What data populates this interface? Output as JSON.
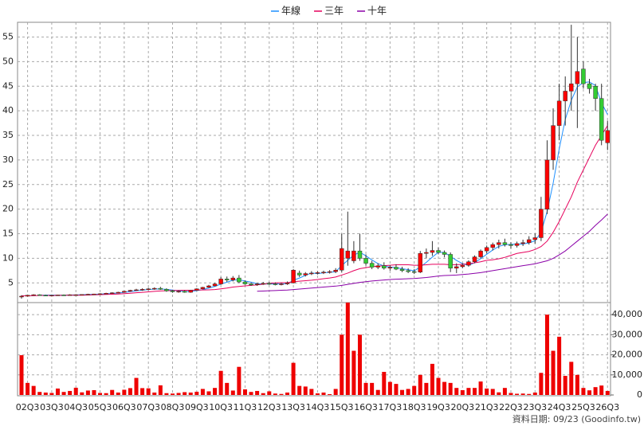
{
  "chart_data": {
    "type": "candlestick",
    "categories": [
      null,
      "02Q3",
      null,
      null,
      null,
      "03Q3",
      null,
      null,
      null,
      "04Q3",
      null,
      null,
      null,
      "05Q3",
      null,
      null,
      null,
      "06Q3",
      null,
      null,
      null,
      "07Q3",
      null,
      null,
      null,
      "08Q3",
      null,
      null,
      null,
      "09Q3",
      null,
      null,
      null,
      "10Q3",
      null,
      null,
      null,
      "11Q3",
      null,
      null,
      null,
      "12Q3",
      null,
      null,
      null,
      "13Q3",
      null,
      null,
      null,
      "14Q3",
      null,
      null,
      null,
      "15Q3",
      null,
      null,
      null,
      "16Q3",
      null,
      null,
      null,
      "17Q3",
      null,
      null,
      null,
      "18Q3",
      null,
      null,
      null,
      "19Q3",
      null,
      null,
      null,
      "20Q3",
      null,
      null,
      null,
      "21Q3",
      null,
      null,
      null,
      "22Q3",
      null,
      null,
      null,
      "23Q3",
      null,
      null,
      null,
      "24Q3",
      null,
      null,
      null,
      "25Q3",
      null,
      null,
      null,
      "26Q3"
    ],
    "open": [
      2.2,
      2.3,
      2.5,
      2.6,
      2.5,
      2.45,
      2.5,
      2.55,
      2.5,
      2.6,
      2.6,
      2.65,
      2.7,
      2.75,
      2.8,
      2.9,
      3.0,
      3.1,
      3.3,
      3.5,
      3.6,
      3.7,
      3.8,
      3.9,
      3.7,
      3.4,
      3.2,
      3.3,
      3.1,
      3.5,
      3.8,
      4.1,
      4.4,
      4.8,
      5.8,
      5.6,
      6.0,
      5.2,
      4.8,
      4.6,
      4.8,
      4.9,
      4.8,
      4.7,
      4.8,
      5.0,
      7.0,
      6.6,
      6.9,
      7.0,
      7.1,
      7.2,
      7.3,
      7.6,
      10.0,
      9.5,
      11.5,
      10.0,
      9.0,
      8.2,
      8.5,
      8.0,
      8.2,
      7.8,
      7.5,
      7.3,
      7.2,
      11.0,
      11.2,
      11.6,
      11.2,
      10.8,
      8.0,
      8.3,
      8.6,
      9.3,
      10.3,
      11.5,
      12.2,
      12.8,
      13.2,
      12.8,
      12.6,
      13.0,
      13.2,
      13.8,
      14.2,
      20.0,
      30.0,
      37.0,
      42.0,
      44.0,
      45.5,
      48.5,
      45.5,
      45.0,
      42.5,
      33.5
    ],
    "high": [
      2.5,
      2.6,
      2.7,
      2.7,
      2.6,
      2.6,
      2.6,
      2.65,
      2.7,
      2.7,
      2.7,
      2.8,
      2.8,
      2.9,
      3.0,
      3.1,
      3.2,
      3.4,
      3.6,
      3.8,
      3.9,
      4.0,
      4.1,
      4.2,
      3.9,
      3.6,
      3.5,
      3.5,
      3.6,
      3.9,
      4.2,
      4.6,
      5.0,
      6.2,
      6.3,
      6.4,
      6.6,
      5.5,
      5.1,
      5.0,
      5.2,
      5.2,
      5.1,
      5.0,
      5.3,
      7.8,
      7.5,
      7.2,
      7.4,
      7.4,
      7.5,
      7.6,
      8.0,
      15.0,
      19.5,
      13.5,
      15.0,
      10.8,
      9.5,
      9.0,
      9.2,
      8.6,
      8.8,
      8.3,
      8.0,
      7.8,
      11.5,
      12.0,
      13.5,
      12.2,
      11.6,
      11.2,
      9.0,
      9.0,
      9.6,
      10.6,
      11.8,
      12.6,
      13.2,
      13.8,
      14.0,
      13.3,
      13.4,
      13.8,
      14.5,
      15.0,
      22.5,
      34.0,
      40.5,
      45.5,
      47.0,
      57.5,
      55.0,
      50.0,
      46.5,
      45.5,
      45.5,
      38.0
    ],
    "low": [
      1.8,
      2.2,
      2.4,
      2.4,
      2.4,
      2.4,
      2.4,
      2.45,
      2.45,
      2.5,
      2.5,
      2.55,
      2.6,
      2.65,
      2.7,
      2.8,
      2.9,
      3.0,
      3.2,
      3.4,
      3.4,
      3.5,
      3.6,
      3.6,
      3.2,
      3.0,
      3.0,
      3.0,
      3.0,
      3.4,
      3.7,
      4.0,
      4.3,
      4.6,
      5.2,
      5.3,
      5.0,
      4.6,
      4.4,
      4.4,
      4.6,
      4.6,
      4.5,
      4.5,
      4.6,
      4.9,
      6.2,
      6.3,
      6.6,
      6.7,
      6.8,
      6.9,
      7.0,
      7.2,
      8.5,
      9.0,
      9.5,
      8.5,
      7.8,
      7.8,
      7.7,
      7.5,
      7.6,
      7.2,
      7.0,
      6.8,
      7.0,
      10.0,
      10.5,
      10.8,
      10.2,
      7.2,
      7.0,
      8.0,
      8.3,
      9.0,
      10.0,
      11.0,
      11.6,
      12.0,
      12.4,
      12.0,
      12.2,
      12.5,
      12.8,
      13.0,
      13.5,
      19.0,
      28.0,
      34.0,
      37.0,
      40.0,
      36.5,
      44.5,
      43.5,
      40.0,
      33.0,
      32.0
    ],
    "close": [
      2.3,
      2.5,
      2.6,
      2.5,
      2.45,
      2.5,
      2.55,
      2.5,
      2.6,
      2.6,
      2.65,
      2.7,
      2.75,
      2.8,
      2.9,
      3.0,
      3.1,
      3.3,
      3.5,
      3.6,
      3.7,
      3.8,
      3.9,
      3.7,
      3.4,
      3.2,
      3.3,
      3.1,
      3.5,
      3.8,
      4.1,
      4.4,
      4.8,
      5.8,
      5.6,
      6.0,
      5.2,
      4.8,
      4.6,
      4.8,
      4.9,
      4.8,
      4.7,
      4.8,
      5.0,
      7.6,
      6.6,
      6.9,
      7.0,
      7.1,
      7.2,
      7.3,
      7.6,
      12.0,
      11.5,
      11.5,
      10.0,
      9.0,
      8.2,
      8.5,
      8.0,
      8.2,
      7.8,
      7.5,
      7.3,
      7.2,
      11.0,
      11.2,
      11.6,
      11.2,
      10.8,
      8.0,
      8.3,
      8.6,
      9.3,
      10.3,
      11.5,
      12.2,
      12.8,
      13.2,
      12.8,
      12.6,
      13.0,
      13.2,
      13.8,
      14.2,
      20.0,
      30.0,
      37.0,
      42.0,
      44.0,
      45.5,
      48.0,
      45.5,
      44.5,
      42.5,
      34.0,
      36.0
    ],
    "volume": [
      19800,
      6000,
      4500,
      1500,
      1200,
      1000,
      3200,
      1500,
      2000,
      3600,
      1300,
      2200,
      2400,
      1000,
      900,
      2500,
      1200,
      2600,
      3400,
      8500,
      3400,
      3300,
      1200,
      4800,
      900,
      700,
      1000,
      1400,
      1200,
      1600,
      3000,
      1800,
      3500,
      12000,
      6000,
      2200,
      14000,
      2800,
      1500,
      2000,
      900,
      1800,
      700,
      500,
      1200,
      16000,
      4500,
      4200,
      3000,
      800,
      1200,
      400,
      3000,
      30000,
      46000,
      22000,
      30000,
      6000,
      6000,
      2500,
      11500,
      6500,
      5500,
      2500,
      3000,
      4500,
      10000,
      6000,
      15500,
      8500,
      6500,
      6000,
      3500,
      2400,
      3500,
      3500,
      6700,
      3200,
      3000,
      1300,
      3500,
      1000,
      600,
      700,
      500,
      1200,
      11000,
      40000,
      22000,
      29000,
      9500,
      16500,
      10000,
      3500,
      2300,
      3900,
      4700,
      2000
    ],
    "up_color": "#ff0000",
    "down_color": "#33cc33",
    "volume_color": "#ee0000",
    "series": [
      {
        "name": "年線",
        "color": "#1e8fff",
        "values": [
          null,
          null,
          null,
          2.48,
          2.51,
          2.51,
          2.5,
          2.5,
          2.54,
          2.56,
          2.59,
          2.64,
          2.68,
          2.73,
          2.79,
          2.86,
          2.95,
          3.08,
          3.23,
          3.38,
          3.53,
          3.65,
          3.75,
          3.78,
          3.7,
          3.55,
          3.4,
          3.25,
          3.28,
          3.43,
          3.63,
          3.95,
          4.28,
          4.78,
          5.15,
          5.55,
          5.65,
          5.4,
          5.15,
          4.85,
          4.78,
          4.78,
          4.8,
          4.8,
          4.83,
          5.53,
          6.0,
          6.53,
          7.03,
          6.9,
          7.05,
          7.15,
          7.3,
          8.53,
          9.6,
          10.65,
          11.25,
          10.5,
          9.68,
          8.93,
          8.43,
          8.23,
          8.13,
          7.88,
          7.7,
          7.45,
          8.25,
          9.18,
          10.25,
          11.25,
          11.2,
          10.4,
          9.58,
          8.93,
          8.55,
          9.13,
          9.93,
          10.83,
          11.7,
          12.43,
          12.75,
          12.85,
          12.9,
          12.9,
          13.15,
          13.55,
          15.3,
          19.5,
          25.3,
          32.25,
          38.25,
          42.13,
          44.88,
          45.75,
          45.88,
          45.13,
          41.63,
          39.25
        ]
      },
      {
        "name": "三年",
        "color": "#e6005c",
        "values": [
          2.4,
          2.4,
          2.4,
          2.45,
          2.45,
          2.45,
          2.45,
          2.5,
          2.5,
          2.5,
          2.5,
          2.54,
          2.58,
          2.61,
          2.65,
          2.7,
          2.75,
          2.82,
          2.9,
          3.0,
          3.08,
          3.18,
          3.28,
          3.36,
          3.4,
          3.45,
          3.48,
          3.5,
          3.52,
          3.55,
          3.57,
          3.6,
          3.65,
          3.8,
          3.95,
          4.15,
          4.28,
          4.4,
          4.5,
          4.6,
          4.75,
          4.9,
          5.0,
          5.05,
          5.05,
          5.25,
          5.35,
          5.45,
          5.55,
          5.7,
          5.85,
          6.0,
          6.2,
          6.6,
          7.0,
          7.5,
          7.9,
          8.1,
          8.3,
          8.4,
          8.5,
          8.6,
          8.7,
          8.7,
          8.7,
          8.6,
          8.6,
          8.7,
          8.8,
          8.8,
          8.8,
          8.7,
          8.7,
          8.8,
          8.9,
          9.1,
          9.3,
          9.6,
          9.7,
          9.9,
          10.2,
          10.6,
          11.0,
          11.2,
          11.4,
          11.8,
          12.4,
          13.5,
          15.3,
          17.5,
          20.0,
          22.5,
          25.5,
          28.0,
          30.5,
          33.0,
          35.0,
          37.0
        ]
      },
      {
        "name": "十年",
        "color": "#8a00a8",
        "values": [
          null,
          null,
          null,
          null,
          null,
          null,
          null,
          null,
          null,
          null,
          null,
          null,
          null,
          null,
          null,
          null,
          null,
          null,
          null,
          null,
          null,
          null,
          null,
          null,
          null,
          null,
          null,
          null,
          null,
          null,
          null,
          null,
          null,
          null,
          null,
          null,
          null,
          null,
          null,
          3.3,
          3.35,
          3.4,
          3.45,
          3.5,
          3.55,
          3.65,
          3.75,
          3.85,
          3.95,
          4.05,
          4.15,
          4.25,
          4.35,
          4.5,
          4.7,
          4.9,
          5.1,
          5.25,
          5.4,
          5.5,
          5.6,
          5.7,
          5.75,
          5.8,
          5.85,
          5.9,
          6.0,
          6.1,
          6.25,
          6.4,
          6.5,
          6.55,
          6.6,
          6.7,
          6.8,
          6.95,
          7.1,
          7.3,
          7.5,
          7.7,
          7.9,
          8.1,
          8.3,
          8.5,
          8.7,
          8.9,
          9.2,
          9.5,
          10.0,
          10.7,
          11.5,
          12.5,
          13.5,
          14.5,
          15.5,
          16.7,
          17.8,
          19.0
        ]
      }
    ],
    "ylim": [
      1,
      58
    ],
    "yticks": [
      5,
      10,
      15,
      20,
      25,
      30,
      35,
      40,
      45,
      50,
      55
    ],
    "y2lim": [
      0,
      46000
    ],
    "y2ticks": [
      0,
      {
        "value": 10000,
        "label": "10,000"
      },
      {
        "value": 20000,
        "label": "20,000"
      },
      {
        "value": 30000,
        "label": "30,000"
      },
      {
        "value": 40000,
        "label": "40,000"
      }
    ],
    "grid": true,
    "legend": "top",
    "note": "資料日期: 09/23  (Goodinfo.tw)"
  }
}
